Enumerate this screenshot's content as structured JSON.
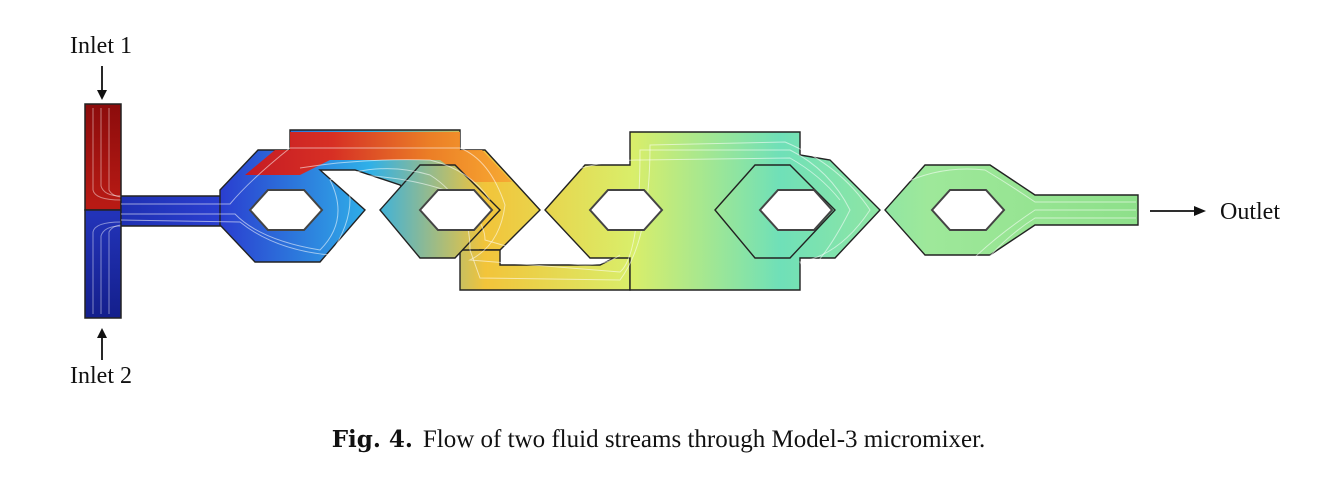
{
  "labels": {
    "inlet1": "Inlet 1",
    "inlet2": "Inlet 2",
    "outlet": "Outlet"
  },
  "caption": {
    "label": "Fig. 4.",
    "text": "Flow of two fluid streams through Model-3 micromixer."
  },
  "colors": {
    "inlet1_stream": "#a01010",
    "inlet2_stream": "#1a2aa8",
    "mixed_stream": "#8ee08a",
    "wall": "#222222"
  }
}
